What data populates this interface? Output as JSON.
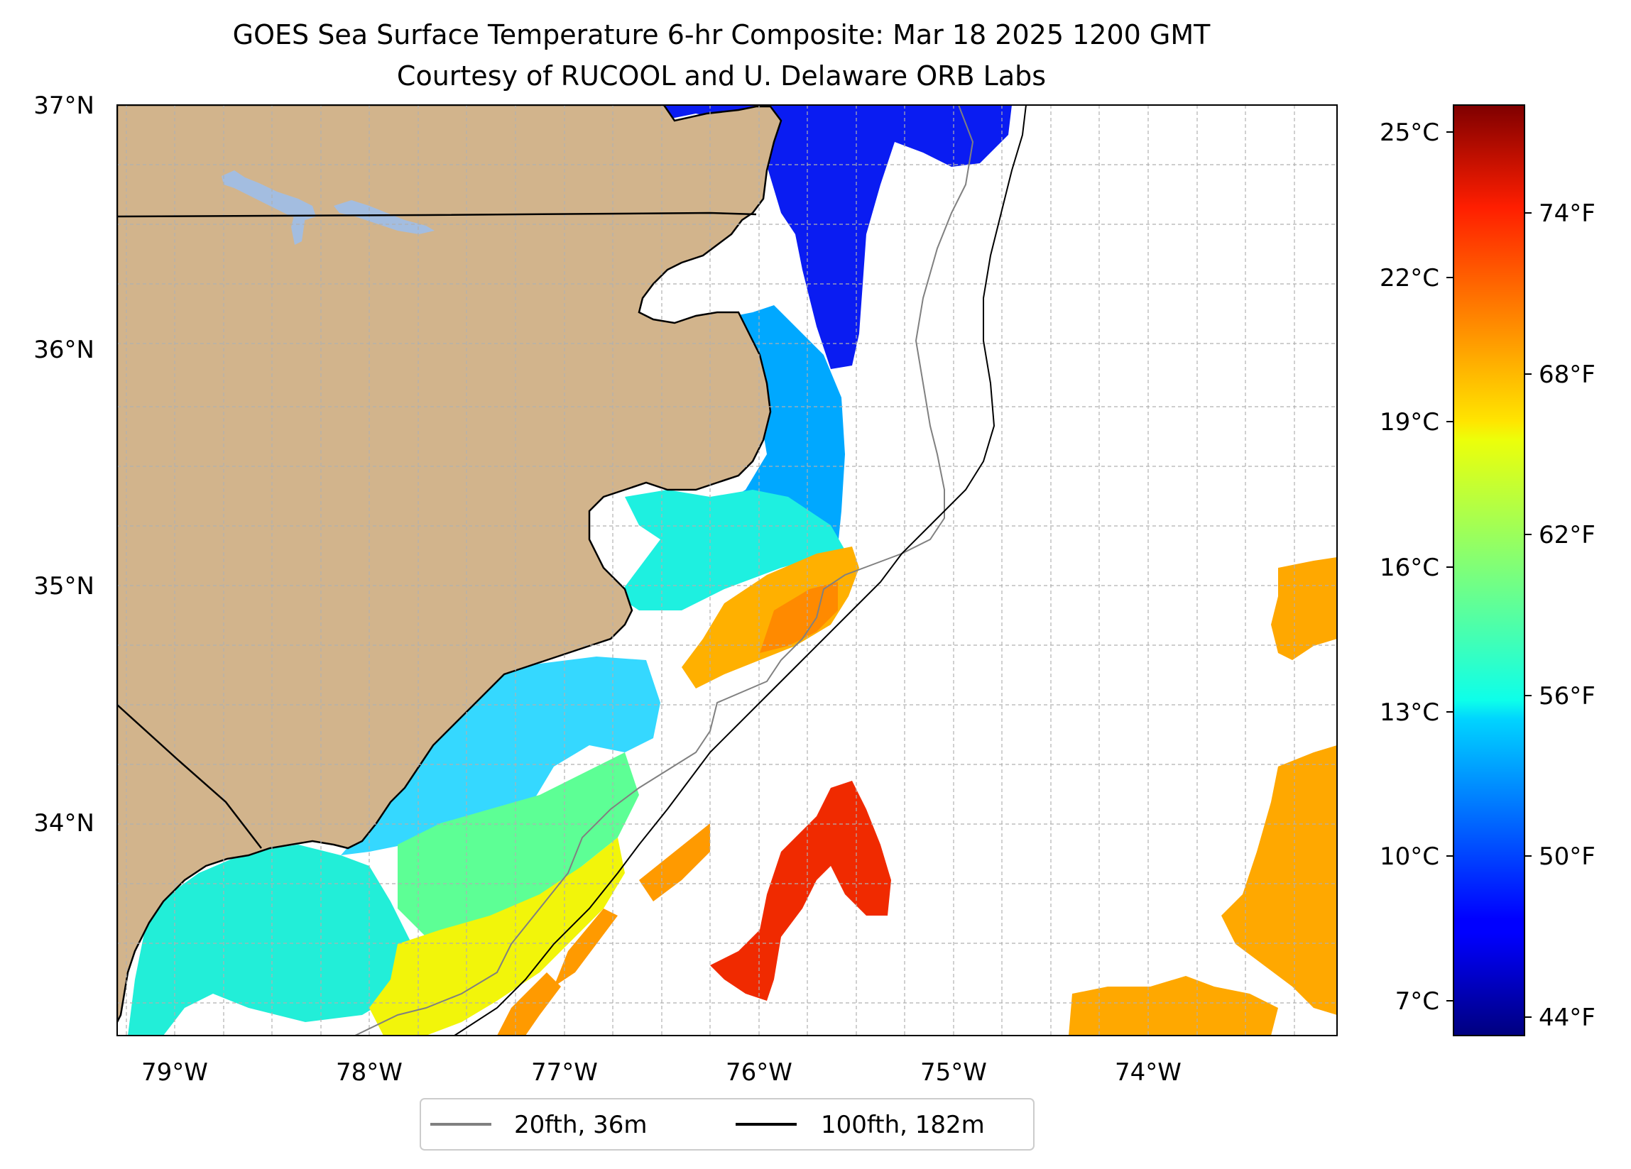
{
  "figure": {
    "title": "GOES Sea Surface Temperature 6-hr Composite: Mar 18 2025 1200 GMT",
    "subtitle": "Courtesy of RUCOOL and U. Delaware ORB Labs"
  },
  "map": {
    "lat_range": [
      33.1,
      37.0
    ],
    "lon_range": [
      -79.3,
      -73.0
    ],
    "lat_ticks": [
      "37°N",
      "36°N",
      "35°N",
      "34°N"
    ],
    "lon_ticks": [
      "79°W",
      "78°W",
      "77°W",
      "76°W",
      "75°W",
      "74°W"
    ],
    "colors": {
      "land": "#d2b48c",
      "lakes": "#a3bde0",
      "ocean_missing": "#ffffff",
      "coastline": "#000000",
      "isobath_20fth": "#808080",
      "isobath_100fth": "#000000",
      "gridlines": "#b0b0b0"
    }
  },
  "legend": {
    "items": [
      {
        "label": "20fth, 36m",
        "color": "#808080"
      },
      {
        "label": "100fth, 182m",
        "color": "#000000"
      }
    ]
  },
  "colorbar": {
    "colormap": "jet",
    "range_c": [
      6.3,
      25.6
    ],
    "celsius_ticks": [
      "25°C",
      "22°C",
      "19°C",
      "16°C",
      "13°C",
      "10°C",
      "7°C"
    ],
    "fahrenheit_ticks": [
      "74°F",
      "68°F",
      "62°F",
      "56°F",
      "50°F",
      "44°F"
    ]
  }
}
